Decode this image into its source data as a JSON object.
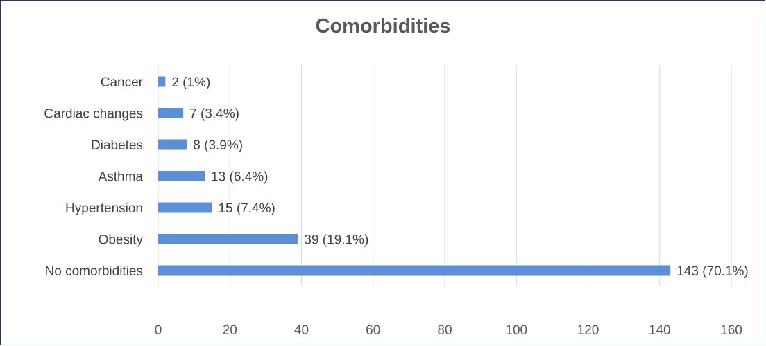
{
  "chart_data": {
    "type": "bar",
    "orientation": "horizontal",
    "title": "Comorbidities",
    "xlabel": "",
    "ylabel": "",
    "categories": [
      "Cancer",
      "Cardiac changes",
      "Diabetes",
      "Asthma",
      "Hypertension",
      "Obesity",
      "No comorbidities"
    ],
    "values": [
      2,
      7,
      8,
      13,
      15,
      39,
      143
    ],
    "data_labels": [
      "2 (1%)",
      "7 (3.4%)",
      "8 (3.9%)",
      "13 (6.4%)",
      "15 (7.4%)",
      "39 (19.1%)",
      "143 (70.1%)"
    ],
    "xlim": [
      0,
      160
    ],
    "xticks": [
      0,
      20,
      40,
      60,
      80,
      100,
      120,
      140,
      160
    ],
    "grid": true,
    "legend": "none",
    "colors": {
      "bar": "#5b8fd6",
      "grid": "#d9d9d9",
      "border": "#1f3763"
    }
  }
}
